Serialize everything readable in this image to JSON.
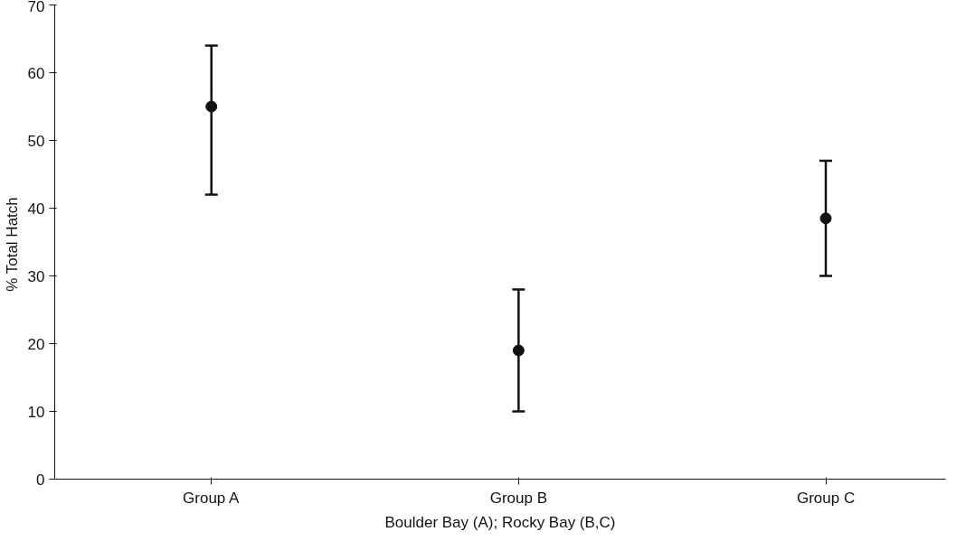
{
  "chart_data": {
    "type": "scatter",
    "xlabel": "Boulder Bay (A); Rocky Bay (B,C)",
    "ylabel": "% Total  Hatch",
    "categories": [
      "Group A",
      "Group B",
      "Group C"
    ],
    "values": [
      55,
      19,
      38.5
    ],
    "errors": [
      [
        42,
        64
      ],
      [
        10,
        28
      ],
      [
        30,
        47
      ]
    ],
    "color": "#111111",
    "marker": "circle",
    "ylim": [
      0,
      70
    ],
    "yticks": [
      0,
      10,
      20,
      30,
      40,
      50,
      60,
      70
    ],
    "grid": false
  }
}
